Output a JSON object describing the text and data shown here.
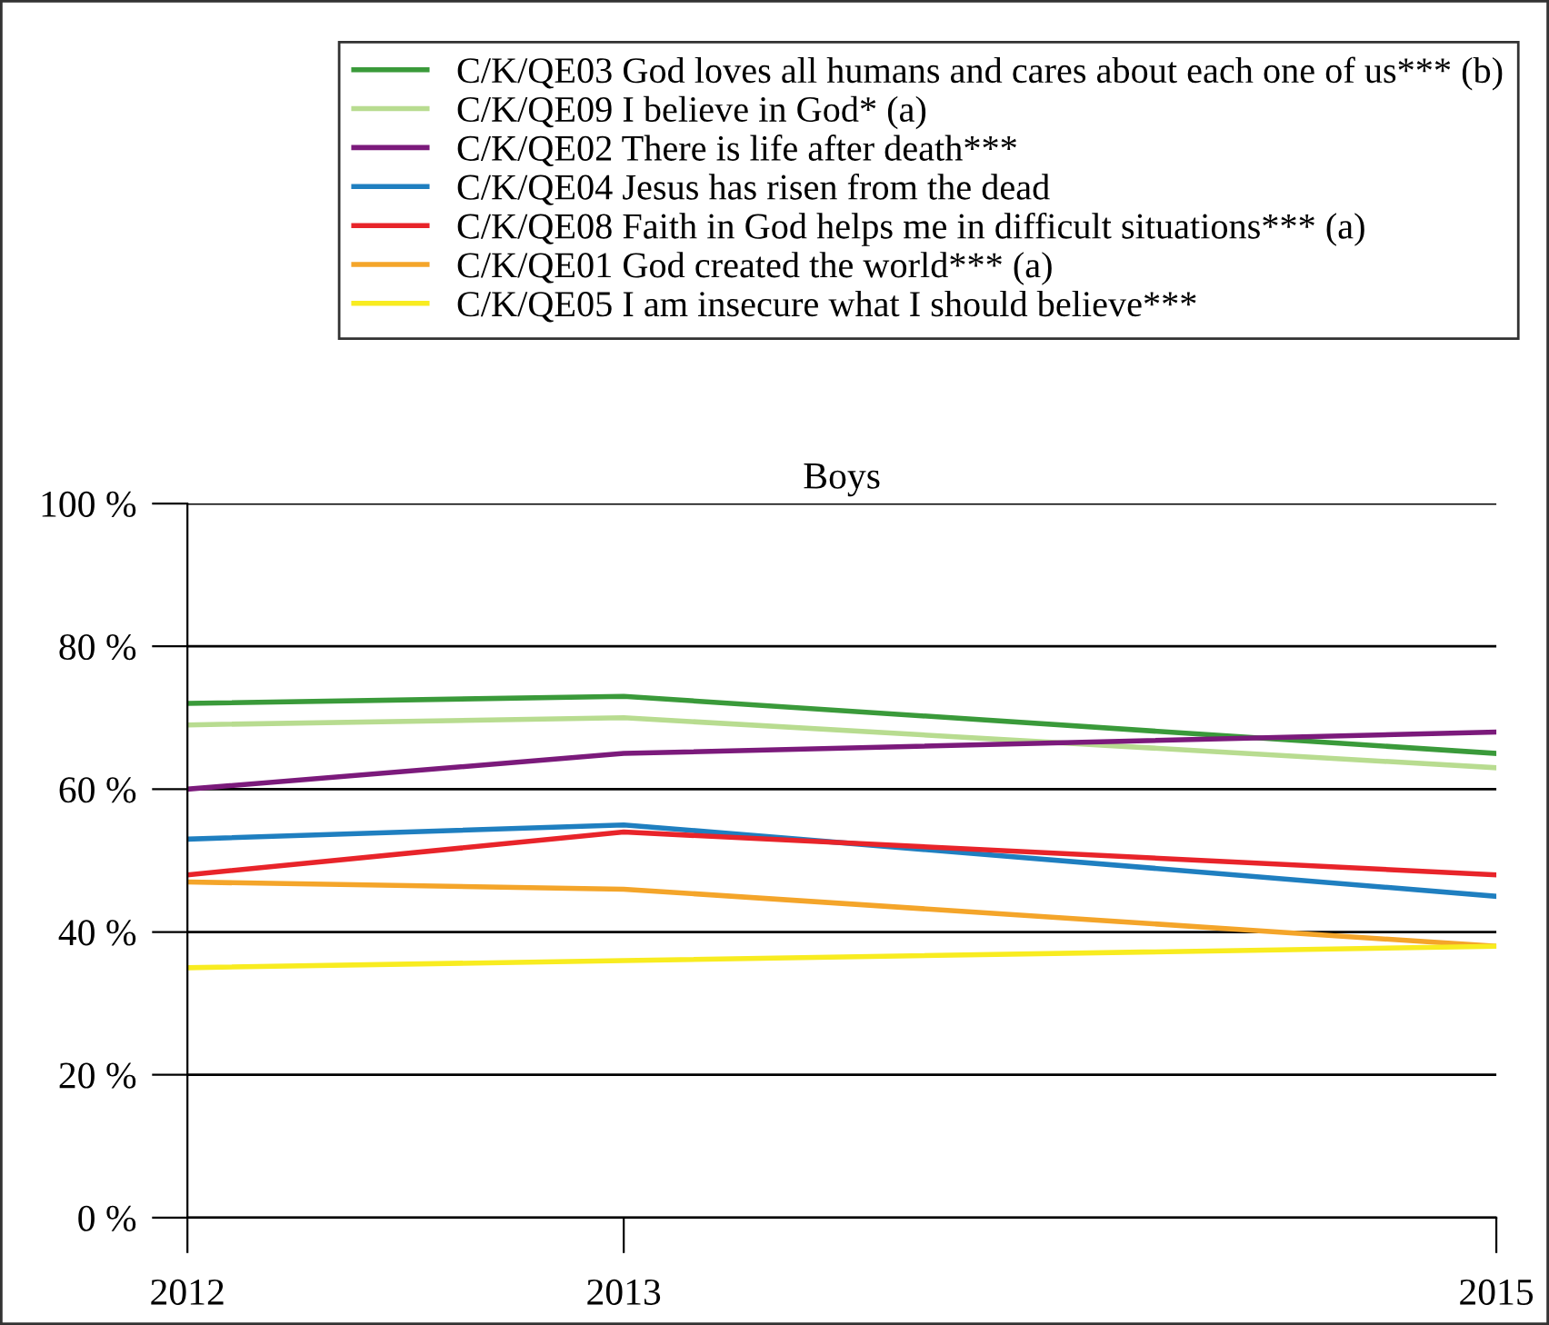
{
  "chart_data": {
    "type": "line",
    "title": "Boys",
    "x": [
      2012,
      2013,
      2015
    ],
    "xlim": [
      2012,
      2015
    ],
    "xticks": [
      2012,
      2013,
      2015
    ],
    "ylim": [
      0,
      100
    ],
    "yticks": [
      {
        "value": 0,
        "label": "0 %"
      },
      {
        "value": 20,
        "label": "20 %"
      },
      {
        "value": 40,
        "label": "40 %"
      },
      {
        "value": 60,
        "label": "60 %"
      },
      {
        "value": 80,
        "label": "80 %"
      },
      {
        "value": 100,
        "label": "100 %"
      }
    ],
    "grid": "y",
    "legend": "top right",
    "marker": "none",
    "line_style": "solid",
    "series": [
      {
        "name": "C/K/QE03 God loves all humans and cares about each one of us*** (b)",
        "color": "#3a9a3a",
        "values": [
          72,
          73,
          65
        ]
      },
      {
        "name": "C/K/QE09 I believe in God* (a)",
        "color": "#b8dc90",
        "values": [
          69,
          70,
          63
        ]
      },
      {
        "name": "C/K/QE02 There is life after death***",
        "color": "#7b1a7b",
        "values": [
          60,
          65,
          68
        ]
      },
      {
        "name": "C/K/QE04 Jesus has risen from the dead",
        "color": "#1f7fc0",
        "values": [
          53,
          55,
          45
        ]
      },
      {
        "name": "C/K/QE08 Faith in God helps me in difficult situations*** (a)",
        "color": "#e8242a",
        "values": [
          48,
          54,
          48
        ]
      },
      {
        "name": "C/K/QE01 God created the world*** (a)",
        "color": "#f4a52a",
        "values": [
          47,
          46,
          38
        ]
      },
      {
        "name": "C/K/QE05 I am insecure what I should believe***",
        "color": "#f8ec20",
        "values": [
          35,
          36,
          38
        ]
      }
    ]
  }
}
